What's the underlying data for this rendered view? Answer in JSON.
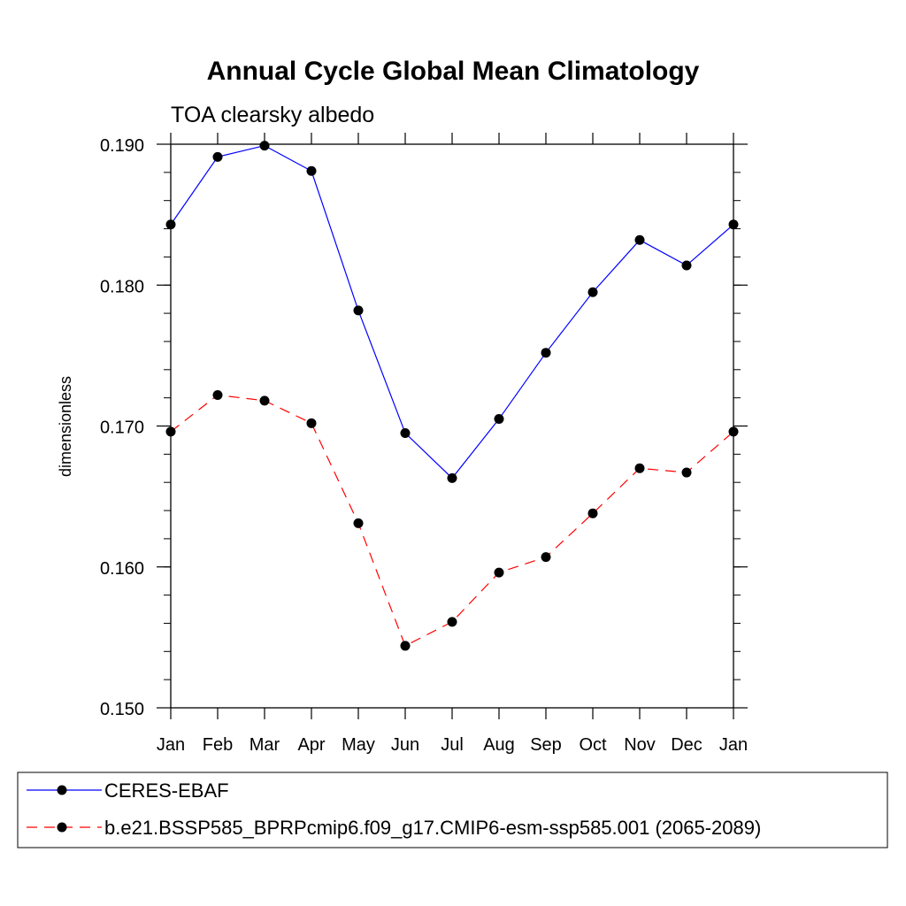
{
  "chart_data": {
    "type": "line",
    "title": "Annual Cycle Global Mean Climatology",
    "subtitle": "TOA clearsky albedo",
    "ylabel": "dimensionless",
    "xlabel": "",
    "categories": [
      "Jan",
      "Feb",
      "Mar",
      "Apr",
      "May",
      "Jun",
      "Jul",
      "Aug",
      "Sep",
      "Oct",
      "Nov",
      "Dec",
      "Jan"
    ],
    "ylim": [
      0.15,
      0.19
    ],
    "yticks": [
      "0.150",
      "0.160",
      "0.170",
      "0.180",
      "0.190"
    ],
    "grid": false,
    "legend_position": "bottom",
    "series": [
      {
        "name": "CERES-EBAF",
        "color": "#0000ff",
        "dash": "solid",
        "values": [
          0.1843,
          0.1891,
          0.1899,
          0.1881,
          0.1782,
          0.1695,
          0.1663,
          0.1705,
          0.1752,
          0.1795,
          0.1832,
          0.1814,
          0.1843
        ]
      },
      {
        "name": "b.e21.BSSP585_BPRPcmip6.f09_g17.CMIP6-esm-ssp585.001 (2065-2089)",
        "color": "#ff0000",
        "dash": "dashed",
        "values": [
          0.1696,
          0.1722,
          0.1718,
          0.1702,
          0.1631,
          0.1544,
          0.1561,
          0.1596,
          0.1607,
          0.1638,
          0.167,
          0.1667,
          0.1696
        ]
      }
    ]
  }
}
